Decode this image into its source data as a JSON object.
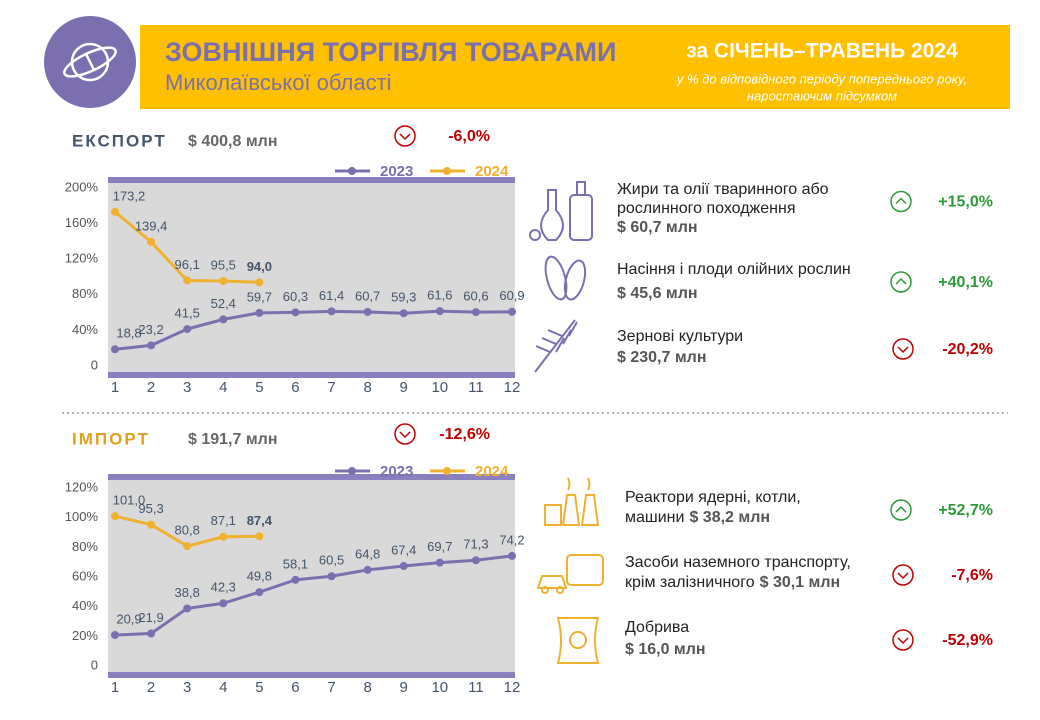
{
  "header": {
    "title": "ЗОВНІШНЯ ТОРГІВЛЯ ТОВАРАМИ",
    "subtitle": "Миколаївської області",
    "period": "за СІЧЕНЬ–ТРАВЕНЬ 2024",
    "note": [
      "у % до відповідного періоду попереднього року,",
      "наростаючим підсумком"
    ]
  },
  "export": {
    "label": "ЕКСПОРТ",
    "amount": "$ 400,8 млн",
    "change": "-6,0%",
    "items": [
      {
        "name": [
          "Жири та олії тваринного або",
          "рослинного походження"
        ],
        "amount": "$ 60,7 млн",
        "change": "+15,0%"
      },
      {
        "name": [
          "Насіння і плоди олійних рослин"
        ],
        "amount": "$ 45,6 млн",
        "change": "+40,1%"
      },
      {
        "name": [
          "Зернові культури"
        ],
        "amount": "$ 230,7 млн",
        "change": "-20,2%"
      }
    ]
  },
  "import": {
    "label": "ІМПОРТ",
    "amount": "$ 191,7 млн",
    "change": "-12,6%",
    "items": [
      {
        "name": [
          "Реактори ядерні, котли,",
          "машини"
        ],
        "amount": "$ 38,2 млн",
        "change": "+52,7%"
      },
      {
        "name": [
          "Засоби наземного транспорту,",
          "крім залізничного"
        ],
        "amount": "$ 30,1 млн",
        "change": "-7,6%"
      },
      {
        "name": [
          "Добрива"
        ],
        "amount": "$ 16,0 млн",
        "change": "-52,9%"
      }
    ]
  },
  "chart_data": [
    {
      "type": "line",
      "x": [
        1,
        2,
        3,
        4,
        5,
        6,
        7,
        8,
        9,
        10,
        11,
        12
      ],
      "xlim": [
        1,
        12
      ],
      "xticks": [
        1,
        2,
        3,
        4,
        5,
        6,
        7,
        8,
        9,
        10,
        11,
        12
      ],
      "ylim": [
        0,
        200
      ],
      "yticks": [
        0,
        {
          "value": 40,
          "label": "40%"
        },
        {
          "value": 80,
          "label": "80%"
        },
        {
          "value": 120,
          "label": "120%"
        },
        {
          "value": 160,
          "label": "160%"
        },
        {
          "value": 200,
          "label": "200%"
        }
      ],
      "series": [
        {
          "name": "2023",
          "color": "#7b6fb0",
          "values": [
            18.8,
            23.2,
            41.5,
            52.4,
            59.7,
            60.3,
            61.4,
            60.7,
            59.3,
            61.6,
            60.6,
            60.9
          ],
          "value_labels": [
            "18,8",
            "23,2",
            "41,5",
            "52,4",
            "59,7",
            "60,3",
            "61,4",
            "60,7",
            "59,3",
            "61,6",
            "60,6",
            "60,9"
          ]
        },
        {
          "name": "2024",
          "color": "#f0b030",
          "values": [
            173.2,
            139.4,
            96.1,
            95.5,
            94.0,
            null,
            null,
            null,
            null,
            null,
            null,
            null
          ],
          "value_labels": [
            "173,2",
            "139,4",
            "96,1",
            "95,5",
            "94,0",
            null,
            null,
            null,
            null,
            null,
            null,
            null
          ]
        }
      ]
    },
    {
      "type": "line",
      "x": [
        1,
        2,
        3,
        4,
        5,
        6,
        7,
        8,
        9,
        10,
        11,
        12
      ],
      "xlim": [
        1,
        12
      ],
      "xticks": [
        1,
        2,
        3,
        4,
        5,
        6,
        7,
        8,
        9,
        10,
        11,
        12
      ],
      "ylim": [
        0,
        120
      ],
      "yticks": [
        0,
        {
          "value": 20,
          "label": "20%"
        },
        {
          "value": 40,
          "label": "40%"
        },
        {
          "value": 60,
          "label": "60%"
        },
        {
          "value": 80,
          "label": "80%"
        },
        {
          "value": 100,
          "label": "100%"
        },
        {
          "value": 120,
          "label": "120%"
        }
      ],
      "series": [
        {
          "name": "2023",
          "color": "#7b6fb0",
          "values": [
            20.9,
            21.9,
            38.8,
            42.3,
            49.8,
            58.1,
            60.5,
            64.8,
            67.4,
            69.7,
            71.3,
            74.2
          ],
          "value_labels": [
            "20,9",
            "21,9",
            "38,8",
            "42,3",
            "49,8",
            "58,1",
            "60,5",
            "64,8",
            "67,4",
            "69,7",
            "71,3",
            "74,2"
          ]
        },
        {
          "name": "2024",
          "color": "#f0b030",
          "values": [
            101.0,
            95.3,
            80.8,
            87.1,
            87.4,
            null,
            null,
            null,
            null,
            null,
            null,
            null
          ],
          "value_labels": [
            "101,0",
            "95,3",
            "80,8",
            "87,1",
            "87,4",
            null,
            null,
            null,
            null,
            null,
            null,
            null
          ]
        }
      ]
    }
  ]
}
